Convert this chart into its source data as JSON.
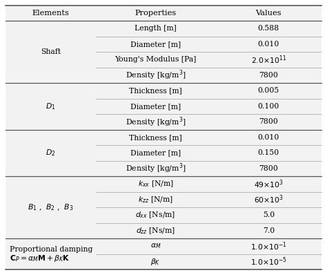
{
  "headers": [
    "Elements",
    "Properties",
    "Values"
  ],
  "rows": [
    {
      "element": "Shaft",
      "properties": [
        "Length [m]",
        "Diameter [m]",
        "Young's Modulus [Pa]",
        "Density [kg/m$^3$]"
      ],
      "values": [
        "0.588",
        "0.010",
        "$2.0{\\times}10^{11}$",
        "7800"
      ],
      "n": 4,
      "elem_italic": false
    },
    {
      "element": "$D_1$",
      "properties": [
        "Thickness [m]",
        "Diameter [m]",
        "Density [kg/m$^3$]"
      ],
      "values": [
        "0.005",
        "0.100",
        "7800"
      ],
      "n": 3,
      "elem_italic": true
    },
    {
      "element": "$D_2$",
      "properties": [
        "Thickness [m]",
        "Diameter [m]",
        "Density [kg/m$^3$]"
      ],
      "values": [
        "0.010",
        "0.150",
        "7800"
      ],
      "n": 3,
      "elem_italic": true
    },
    {
      "element": "$B_1$ ,  $B_2$ ,  $B_3$",
      "properties": [
        "$k_{xx}$ [N/m]",
        "$k_{zz}$ [N/m]",
        "$d_{xx}$ [Ns/m]",
        "$d_{zz}$ [Ns/m]"
      ],
      "values": [
        "$49{\\times}10^{3}$",
        "$60{\\times}10^{3}$",
        "5.0",
        "7.0"
      ],
      "n": 4,
      "elem_italic": true
    },
    {
      "element_line1": "Proportional damping",
      "element_line2": "$\\mathbf{C}_P = \\alpha_M \\mathbf{M} + \\beta_K \\mathbf{K}$",
      "properties": [
        "$\\alpha_M$",
        "$\\beta_K$"
      ],
      "values": [
        "$1.0{\\times}10^{-1}$",
        "$1.0{\\times}10^{-5}$"
      ],
      "n": 2,
      "elem_italic": false,
      "two_line_elem": true
    }
  ],
  "font_size": 7.8,
  "header_font_size": 8.2,
  "fig_bg": "#ffffff",
  "table_bg": "#f2f2f2",
  "line_color": "#888888",
  "thick_line_color": "#555555",
  "col_splits": [
    0.285,
    0.665
  ]
}
